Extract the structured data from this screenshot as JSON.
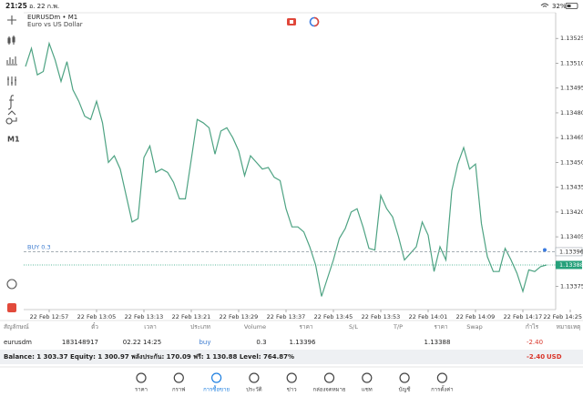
{
  "status_bar": {
    "time": "21:25",
    "date": "อ. 22 ก.พ.",
    "battery": "32%"
  },
  "toolbar": {
    "timeframe": "M1"
  },
  "chart_data": {
    "type": "line",
    "symbol": "EURUSDm • M1",
    "description": "Euro vs US Dollar",
    "categories": [
      null,
      null,
      null,
      null,
      "22 Feb 12:57",
      null,
      null,
      null,
      null,
      null,
      null,
      null,
      "22 Feb 13:05",
      null,
      null,
      null,
      null,
      null,
      null,
      null,
      "22 Feb 13:13",
      null,
      null,
      null,
      null,
      null,
      null,
      null,
      "22 Feb 13:21",
      null,
      null,
      null,
      null,
      null,
      null,
      null,
      "22 Feb 13:29",
      null,
      null,
      null,
      null,
      null,
      null,
      null,
      "22 Feb 13:37",
      null,
      null,
      null,
      null,
      null,
      null,
      null,
      "22 Feb 13:45",
      null,
      null,
      null,
      null,
      null,
      null,
      null,
      "22 Feb 13:53",
      null,
      null,
      null,
      null,
      null,
      null,
      null,
      "22 Feb 14:01",
      null,
      null,
      null,
      null,
      null,
      null,
      null,
      "22 Feb 14:09",
      null,
      null,
      null,
      null,
      null,
      null,
      null,
      "22 Feb 14:17",
      null,
      null,
      null,
      null,
      null,
      null,
      null,
      "22 Feb 14:25"
    ],
    "values": [
      1.13508,
      1.13519,
      1.13503,
      1.13505,
      1.13522,
      1.13512,
      1.13499,
      1.13511,
      1.13494,
      1.13487,
      1.13478,
      1.13476,
      1.13487,
      1.13474,
      1.1345,
      1.13454,
      1.13446,
      1.1343,
      1.13414,
      1.13416,
      1.13453,
      1.1346,
      1.13444,
      1.13446,
      1.13444,
      1.13438,
      1.13428,
      1.13428,
      1.13452,
      1.13476,
      1.13474,
      1.13471,
      1.13455,
      1.13469,
      1.13471,
      1.13465,
      1.13457,
      1.13442,
      1.13454,
      1.1345,
      1.13446,
      1.13447,
      1.13441,
      1.13439,
      1.13422,
      1.13411,
      1.13411,
      1.13408,
      1.13399,
      1.13388,
      1.13369,
      1.1338,
      1.13391,
      1.13404,
      1.1341,
      1.1342,
      1.13422,
      1.13411,
      1.13398,
      1.13397,
      1.1343,
      1.13422,
      1.13417,
      1.13405,
      1.13391,
      1.13395,
      1.13399,
      1.13414,
      1.13406,
      1.13384,
      1.13399,
      1.13391,
      1.13433,
      1.13449,
      1.13459,
      1.13446,
      1.13449,
      1.13413,
      1.13393,
      1.13384,
      1.13384,
      1.13398,
      1.13391,
      1.13383,
      1.13372,
      1.13385,
      1.13384,
      1.13387,
      1.13388,
      null,
      null,
      null,
      null
    ],
    "color": "#4ea383",
    "ylim": [
      1.13361,
      1.1354
    ],
    "yticks": [
      1.13375,
      {
        "value": 1.13405,
        "label": "1.13405"
      },
      {
        "value": 1.1342,
        "label": "1.13420"
      },
      1.13435,
      {
        "value": 1.1345,
        "label": "1.13450"
      },
      1.13465,
      {
        "value": 1.1348,
        "label": "1.13480"
      },
      1.13495,
      {
        "value": 1.1351,
        "label": "1.13510"
      },
      1.13525
    ],
    "order_line": {
      "label": "BUY 0.3",
      "value": 1.13396,
      "color": "#9aa3ab"
    },
    "price_line": {
      "value": 1.13388,
      "color": "#26a17b"
    }
  },
  "positions": {
    "columns": [
      "สัญลักษณ์",
      "ตั๋ว",
      "เวลา",
      "ประเภท",
      "Volume",
      "ราคา",
      "S/L",
      "T/P",
      "ราคา",
      "Swap",
      "กำไร",
      "หมายเหตุ"
    ],
    "rows": [
      {
        "symbol": "eurusdm",
        "ticket": "183148917",
        "time": "02.22 14:25",
        "type": "buy",
        "volume": "0.3",
        "open_price": "1.13396",
        "price": "1.13388",
        "profit": "-2.40"
      }
    ]
  },
  "account": {
    "summary": "Balance: 1 303.37 Equity: 1 300.97 พลังประกัน: 170.09 ฟรี: 1 130.88 Level: 764.87%",
    "profit": "-2.40",
    "currency": "USD"
  },
  "tabs": [
    "ราคา",
    "กราฟ",
    "การซื้อขาย",
    "ประวัติ",
    "ข่าว",
    "กล่องจดหมาย",
    "แชท",
    "บัญชี",
    "การตั้งค่า"
  ],
  "active_tab": 2
}
